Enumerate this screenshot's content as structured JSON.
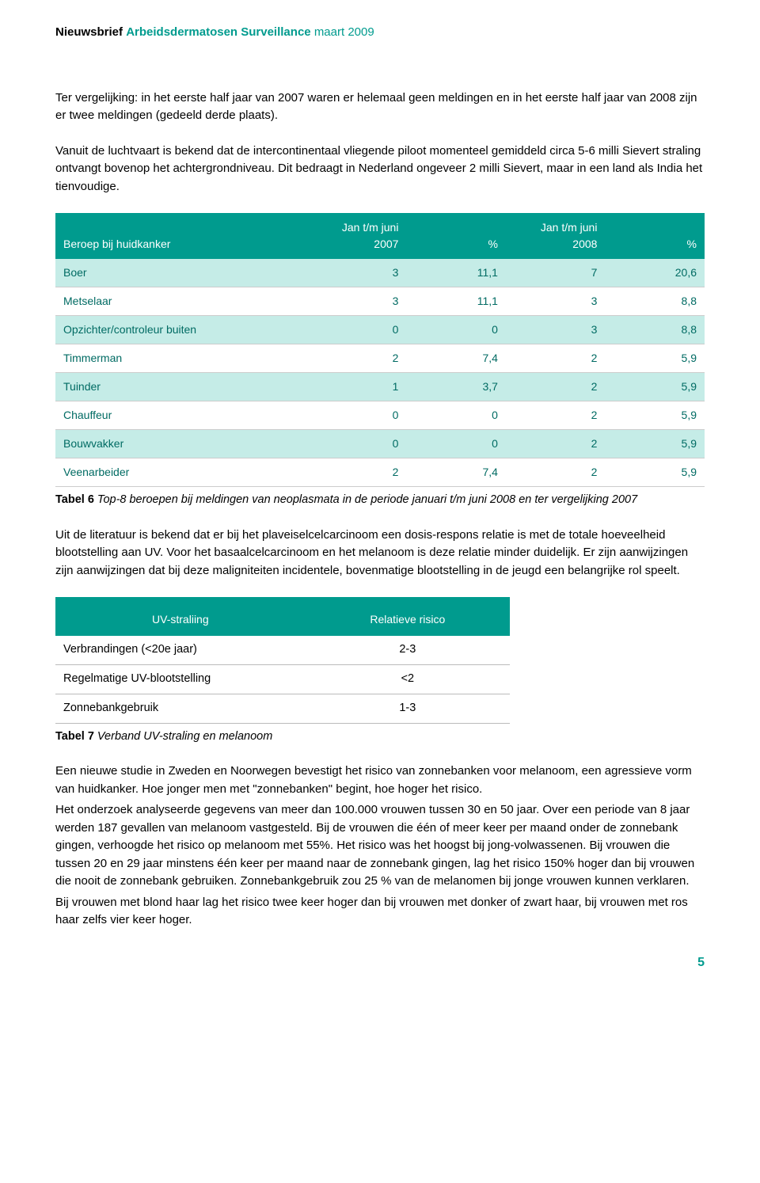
{
  "header": {
    "prefix": "Nieuwsbrief",
    "title": "Arbeidsdermatosen Surveillance",
    "date": "maart 2009"
  },
  "para1": "Ter vergelijking: in het eerste half jaar van 2007 waren er helemaal geen meldingen en in het eerste half jaar van 2008 zijn er twee meldingen (gedeeld derde plaats).",
  "para2": "Vanuit de luchtvaart is bekend dat de intercontinentaal vliegende piloot momenteel gemiddeld circa 5-6 milli Sievert straling ontvangt bovenop het achtergrondniveau. Dit bedraagt in Nederland ongeveer 2 milli Sievert, maar in een land als India het tienvoudige.",
  "table1": {
    "headers": {
      "c0": "Beroep bij huidkanker",
      "c1": "Jan t/m juni 2007",
      "c2": "%",
      "c3": "Jan t/m juni 2008",
      "c4": "%"
    },
    "rows": [
      {
        "label": "Boer",
        "a": "3",
        "b": "11,1",
        "c": "7",
        "d": "20,6",
        "band": true
      },
      {
        "label": "Metselaar",
        "a": "3",
        "b": "11,1",
        "c": "3",
        "d": "8,8",
        "band": false
      },
      {
        "label": "Opzichter/controleur buiten",
        "a": "0",
        "b": "0",
        "c": "3",
        "d": "8,8",
        "band": true
      },
      {
        "label": "Timmerman",
        "a": "2",
        "b": "7,4",
        "c": "2",
        "d": "5,9",
        "band": false
      },
      {
        "label": "Tuinder",
        "a": "1",
        "b": "3,7",
        "c": "2",
        "d": "5,9",
        "band": true
      },
      {
        "label": "Chauffeur",
        "a": "0",
        "b": "0",
        "c": "2",
        "d": "5,9",
        "band": false
      },
      {
        "label": "Bouwvakker",
        "a": "0",
        "b": "0",
        "c": "2",
        "d": "5,9",
        "band": true
      },
      {
        "label": "Veenarbeider",
        "a": "2",
        "b": "7,4",
        "c": "2",
        "d": "5,9",
        "band": false
      }
    ]
  },
  "caption1": {
    "bold": "Tabel 6",
    "ital": " Top-8 beroepen bij meldingen van neoplasmata in de periode januari t/m juni 2008 en ter vergelijking 2007"
  },
  "para3": "Uit de literatuur is bekend dat er bij het plaveiselcelcarcinoom een dosis-respons relatie is met de totale hoeveelheid blootstelling aan UV. Voor het basaalcelcarcinoom en het melanoom is deze relatie minder duidelijk. Er zijn aanwijzingen zijn aanwijzingen dat bij deze maligniteiten incidentele, bovenmatige blootstelling in de jeugd een belangrijke rol speelt.",
  "table2": {
    "headers": {
      "c0": "UV-straliing",
      "c1": "Relatieve risico"
    },
    "rows": [
      {
        "label": "Verbrandingen (<20e jaar)",
        "val": "2-3"
      },
      {
        "label": "Regelmatige UV-blootstelling",
        "val": "<2"
      },
      {
        "label": "Zonnebankgebruik",
        "val": "1-3"
      }
    ]
  },
  "caption2": {
    "bold": "Tabel 7",
    "ital": " Verband UV-straling en melanoom"
  },
  "para4": "Een nieuwe studie in Zweden en Noorwegen bevestigt het risico van zonnebanken voor melanoom, een agressieve vorm van huidkanker. Hoe jonger men met \"zonnebanken\" begint, hoe hoger het risico.",
  "para5": "Het onderzoek analyseerde gegevens van meer dan 100.000 vrouwen tussen 30 en 50 jaar. Over een periode van 8 jaar werden 187 gevallen van melanoom vastgesteld. Bij de vrouwen die één of meer keer per maand onder de zonnebank gingen, verhoogde het risico op melanoom met 55%. Het risico was het hoogst bij jong-volwassenen. Bij vrouwen die tussen 20 en 29 jaar minstens één keer per maand naar de zonnebank gingen, lag het risico 150% hoger dan bij vrouwen die nooit de zonnebank gebruiken. Zonnebankgebruik zou 25 % van de melanomen bij jonge vrouwen kunnen verklaren.",
  "para6": "Bij vrouwen met blond haar lag het risico twee keer hoger dan bij vrouwen met donker of zwart haar, bij vrouwen met ros haar zelfs vier keer hoger.",
  "pagenum": "5",
  "colors": {
    "teal": "#009b8e",
    "band": "#c5ece7",
    "tealtext": "#006b63"
  }
}
